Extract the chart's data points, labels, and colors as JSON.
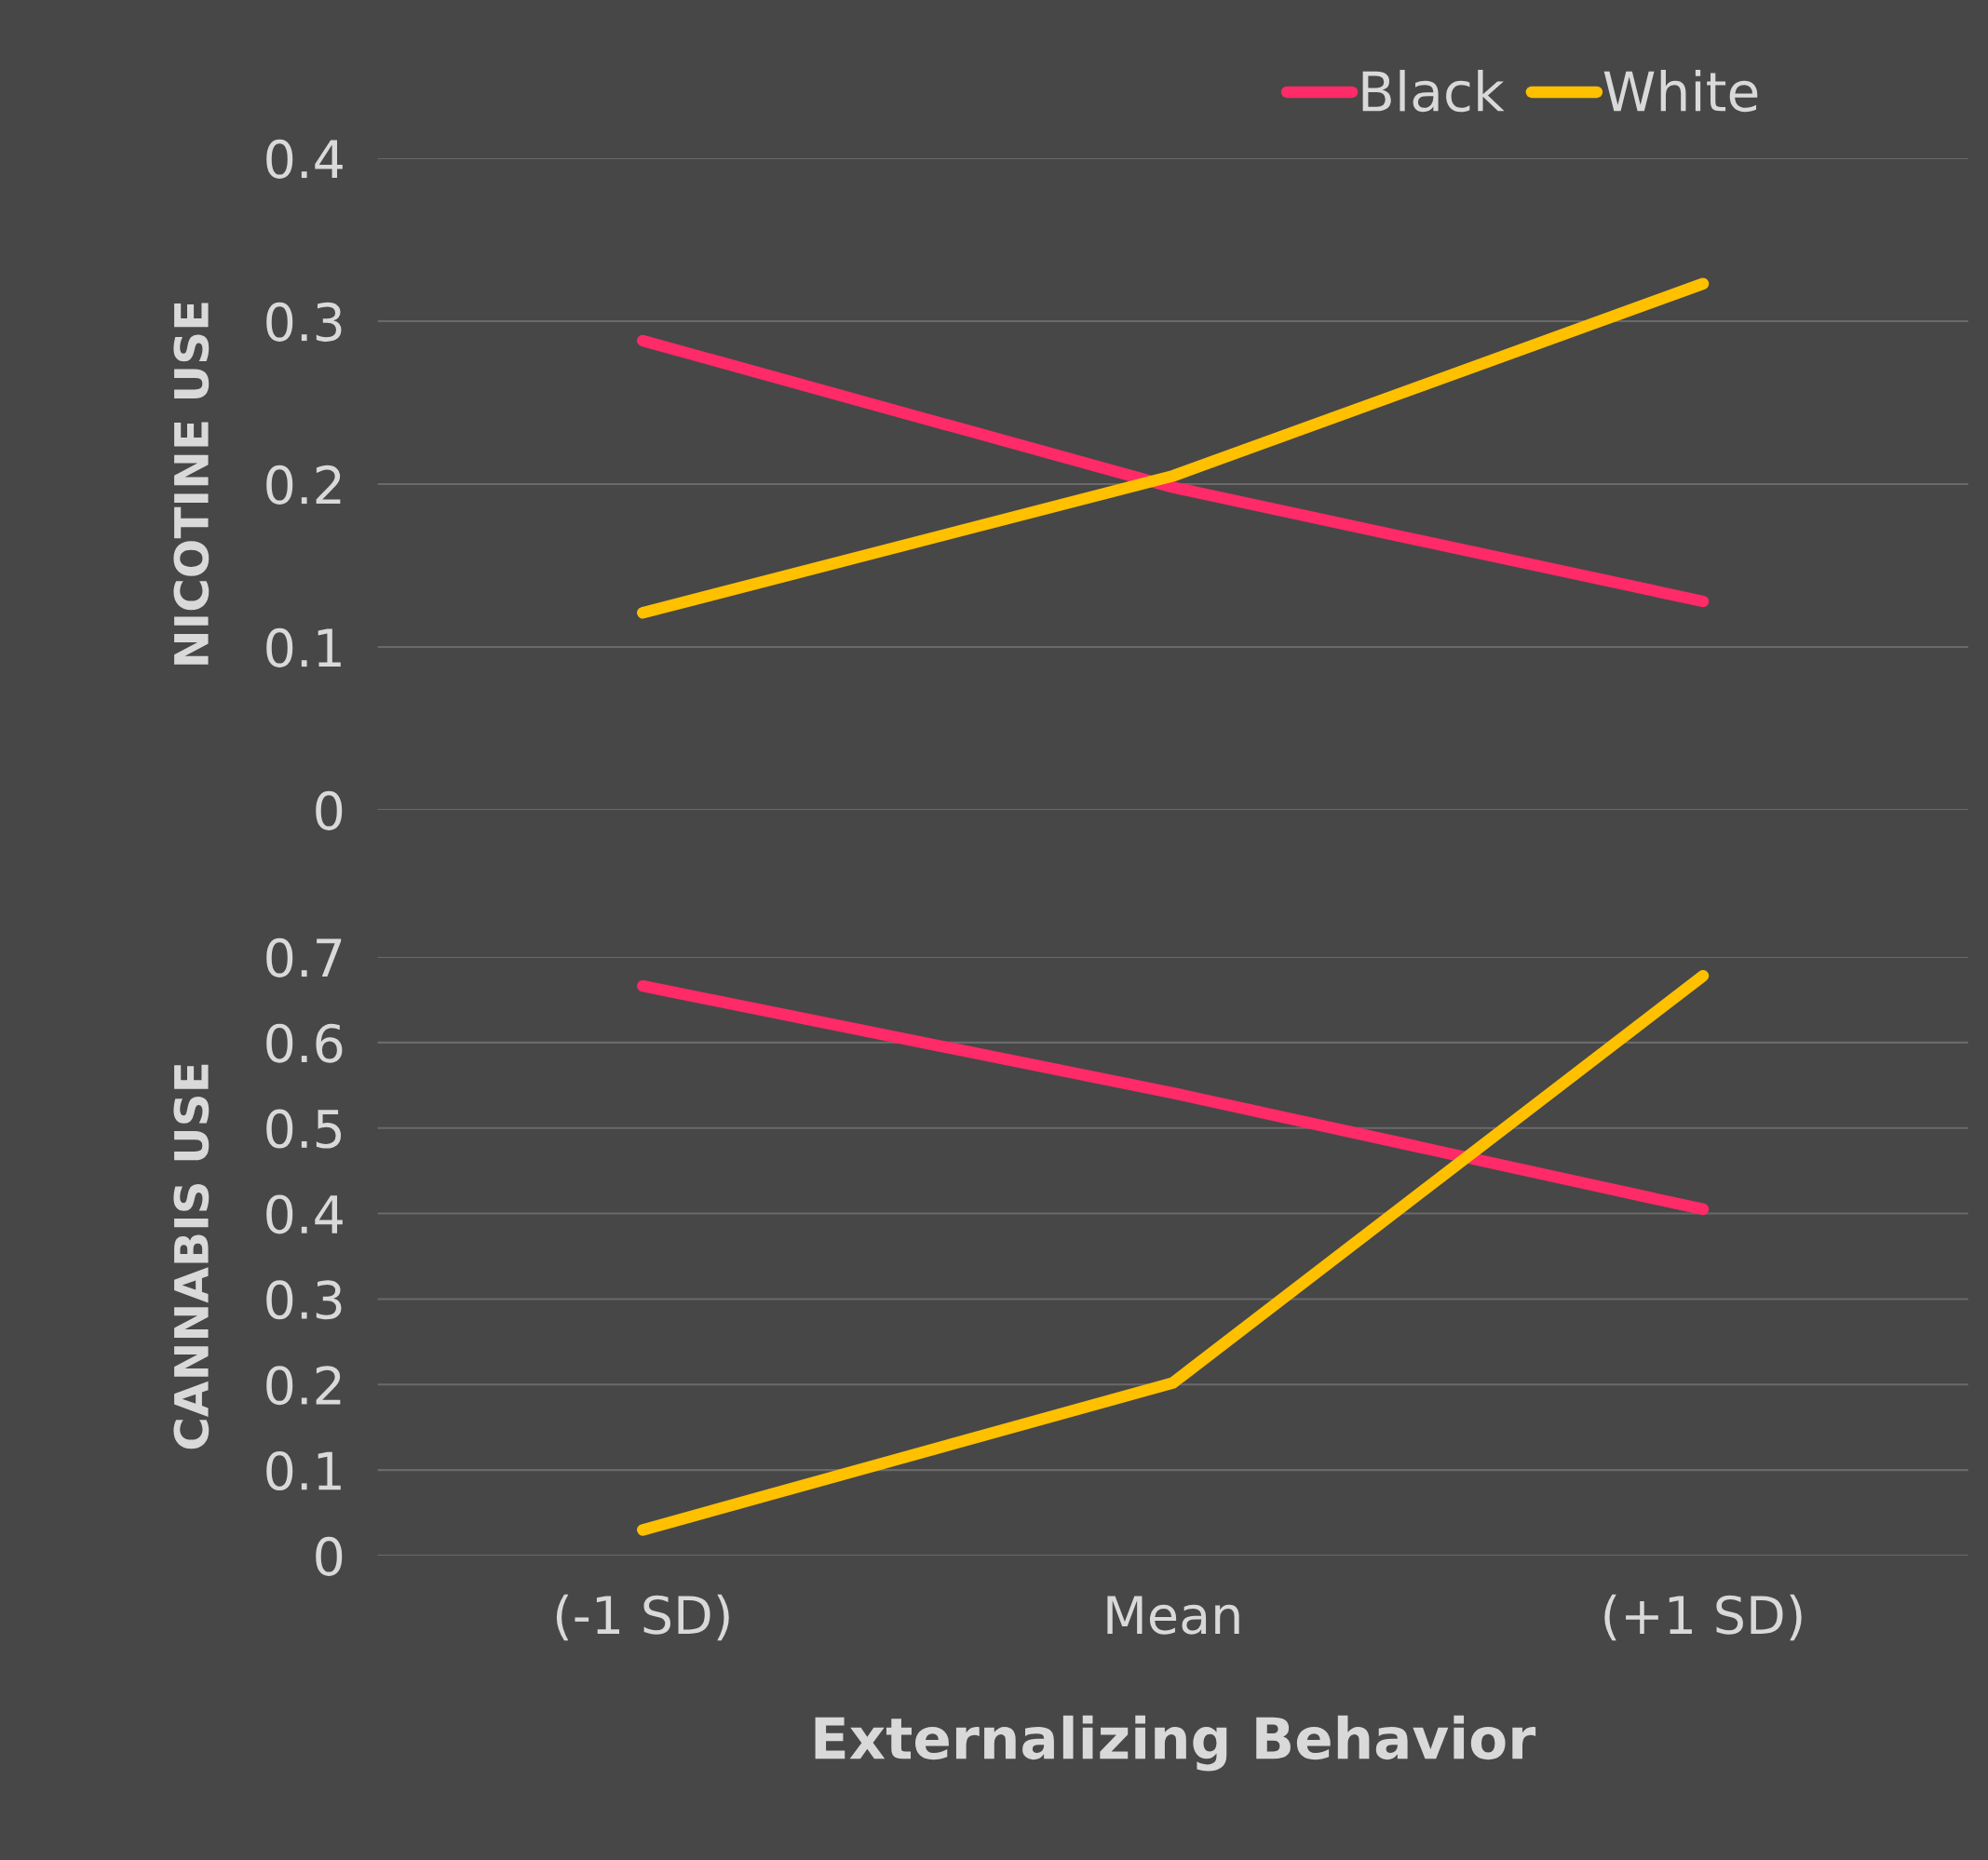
{
  "chart_data": [
    {
      "type": "line",
      "ylabel": "NICOTINE USE",
      "ylim": [
        0,
        0.4
      ],
      "yticks": [
        0,
        0.1,
        0.2,
        0.3,
        0.4
      ],
      "grid": "y",
      "legend": "top right",
      "tick_labels": "y",
      "series": [
        {
          "name": "Black",
          "color": "#ff2a68",
          "values": [
            0.288,
            0.198,
            0.128
          ]
        },
        {
          "name": "White",
          "color": "#ffc000",
          "values": [
            0.121,
            0.205,
            0.323
          ]
        }
      ]
    },
    {
      "type": "line",
      "ylabel": "CANNABIS USE",
      "xlabel": "Externalizing Behavior",
      "categories": [
        "(-1 SD)",
        "Mean",
        "(+1 SD)"
      ],
      "ylim": [
        0,
        0.7
      ],
      "yticks": [
        0,
        0.1,
        0.2,
        0.3,
        0.4,
        0.5,
        0.6,
        0.7
      ],
      "grid": "y",
      "series": [
        {
          "color": "#ff2a68",
          "values": [
            0.666,
            0.541,
            0.405
          ]
        },
        {
          "color": "#ffc000",
          "values": [
            0.03,
            0.202,
            0.678
          ]
        }
      ]
    }
  ]
}
